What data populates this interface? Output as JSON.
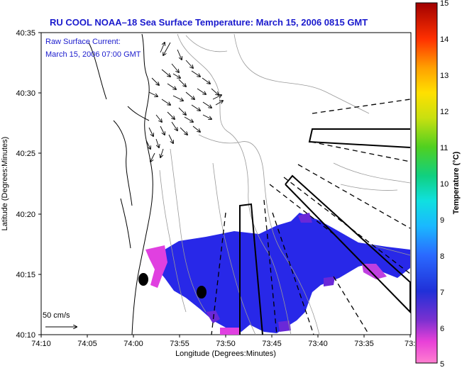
{
  "title": "RU COOL   NOAA–18  Sea Surface Temperature:  March 15, 2006 0815 GMT",
  "current_label": {
    "line1": "Raw Surface Current:",
    "line2": "March 15, 2006 07:00 GMT"
  },
  "scale_label": "50 cm/s",
  "x_axis": {
    "label": "Longitude (Degrees:Minutes)",
    "ticks": [
      "74:10",
      "74:05",
      "74:00",
      "73:55",
      "73:50",
      "73:45",
      "73:40",
      "73:35",
      "73:3"
    ]
  },
  "y_axis": {
    "label": "Latitude (Degrees:Minutes)",
    "ticks": [
      "40:35",
      "40:30",
      "40:25",
      "40:20",
      "40:15",
      "40:10"
    ]
  },
  "colorbar": {
    "label": "Temperature (°C)",
    "ticks": [
      "15",
      "14",
      "13",
      "12",
      "11",
      "10",
      "9",
      "8",
      "7",
      "6",
      "5"
    ]
  }
}
